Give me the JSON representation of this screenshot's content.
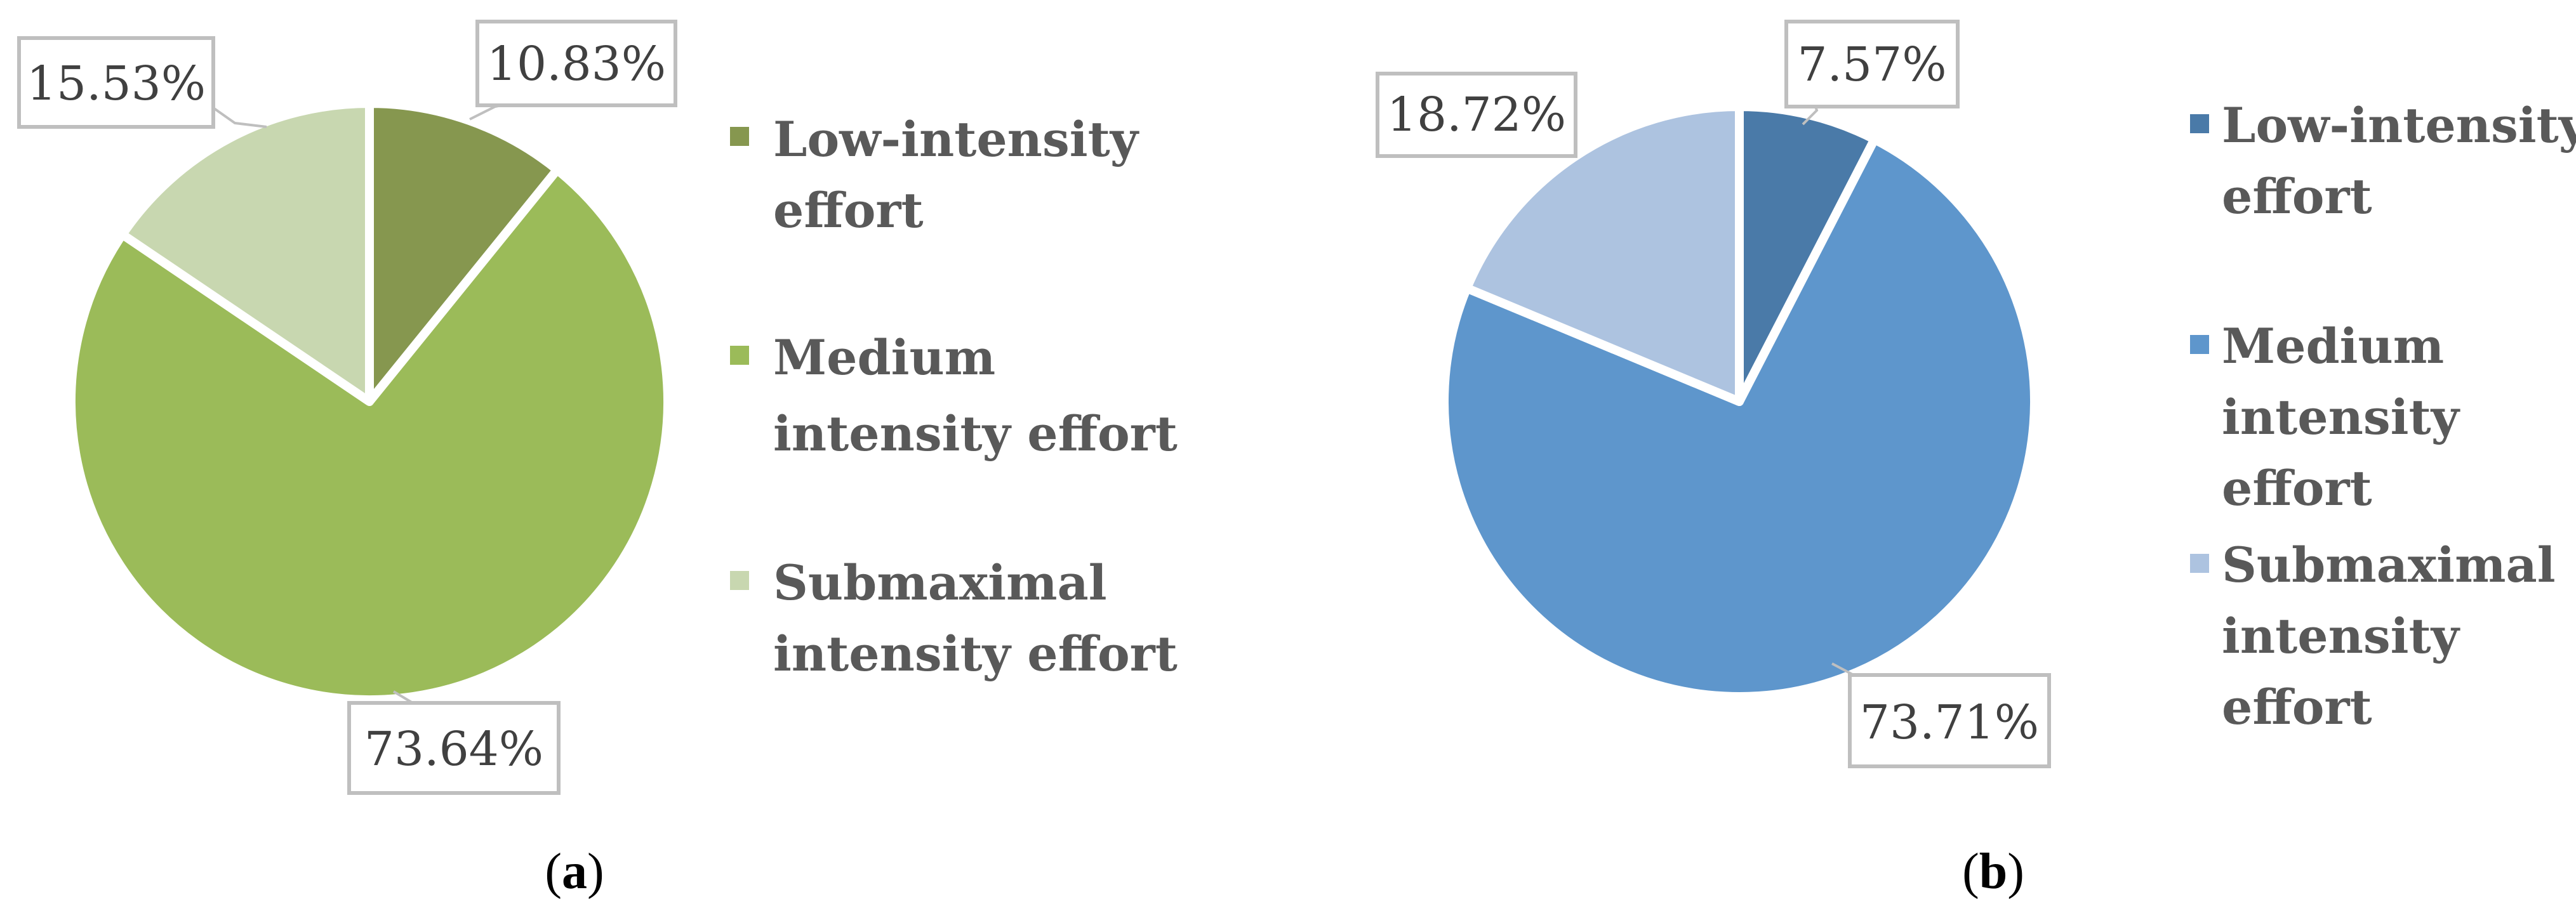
{
  "chart_data": [
    {
      "type": "pie",
      "caption": "a",
      "slices": [
        {
          "label": "Low-intensity effort",
          "value": 10.83,
          "display": "10.83%",
          "color": "#86974f"
        },
        {
          "label": "Medium intensity effort",
          "value": 73.64,
          "display": "73.64%",
          "color": "#9bbb59"
        },
        {
          "label": "Submaximal intensity effort",
          "value": 15.53,
          "display": "15.53%",
          "color": "#c8d7b0"
        }
      ],
      "legend": [
        "Low-intensity",
        "effort",
        "Medium",
        "intensity effort",
        "Submaximal",
        "intensity effort"
      ],
      "legend_placement": "right"
    },
    {
      "type": "pie",
      "caption": "b",
      "slices": [
        {
          "label": "Low-intensity effort",
          "value": 7.57,
          "display": "7.57%",
          "color": "#4a7aa8"
        },
        {
          "label": "Medium intensity effort",
          "value": 73.71,
          "display": "73.71%",
          "color": "#5e96cc"
        },
        {
          "label": "Submaximal intensity effort",
          "value": 18.72,
          "display": "18.72%",
          "color": "#adc3e0"
        }
      ],
      "legend": [
        "Low-intensity",
        "effort",
        "Medium",
        "intensity",
        "effort",
        "Submaximal",
        "intensity",
        "effort"
      ],
      "legend_placement": "right"
    }
  ]
}
